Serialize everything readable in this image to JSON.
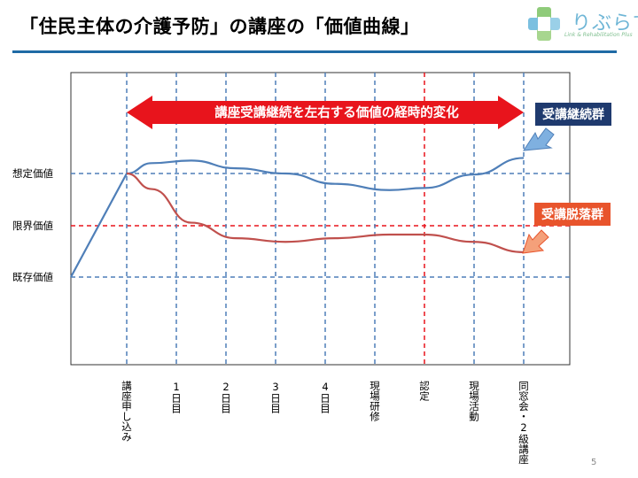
{
  "slide": {
    "title": "「住民主体の介護予防」の講座の「価値曲線」",
    "page_number": "5"
  },
  "logo": {
    "text": "りぶらす",
    "subtext": "Link & Rehabilitation Plus"
  },
  "banner": {
    "text": "講座受講継続を左右する価値の経時的変化",
    "color": "#e8141c"
  },
  "callouts": {
    "continuation": {
      "text": "受講継続群",
      "color": "#1f3a6e"
    },
    "dropout": {
      "text": "受講脱落群",
      "color": "#e8542c"
    }
  },
  "chart_data": {
    "type": "line",
    "y_levels": [
      "想定価値",
      "限界価値",
      "既存価値"
    ],
    "x_labels": [
      "講座申し込み",
      "1日目",
      "2日目",
      "3日目",
      "4日目",
      "現場研修",
      "認定",
      "現場活動",
      "同窓会・2級講座"
    ],
    "highlighted_x": "認定",
    "series": [
      {
        "name": "受講継続群",
        "color": "#4f7fb8",
        "points": [
          [
            -1,
            0
          ],
          [
            0,
            2
          ],
          [
            0.5,
            2.2
          ],
          [
            1.3,
            2.25
          ],
          [
            2.2,
            2.1
          ],
          [
            3.2,
            2.0
          ],
          [
            4.2,
            1.8
          ],
          [
            5.3,
            1.68
          ],
          [
            6.0,
            1.72
          ],
          [
            7.0,
            1.98
          ],
          [
            8.0,
            2.3
          ]
        ]
      },
      {
        "name": "受講脱落群",
        "color": "#c0504d",
        "points": [
          [
            0,
            2
          ],
          [
            0.5,
            1.7
          ],
          [
            1.3,
            1.05
          ],
          [
            2.2,
            0.75
          ],
          [
            3.2,
            0.68
          ],
          [
            4.2,
            0.75
          ],
          [
            5.3,
            0.82
          ],
          [
            6.0,
            0.82
          ],
          [
            7.0,
            0.68
          ],
          [
            8.0,
            0.48
          ]
        ]
      }
    ]
  }
}
